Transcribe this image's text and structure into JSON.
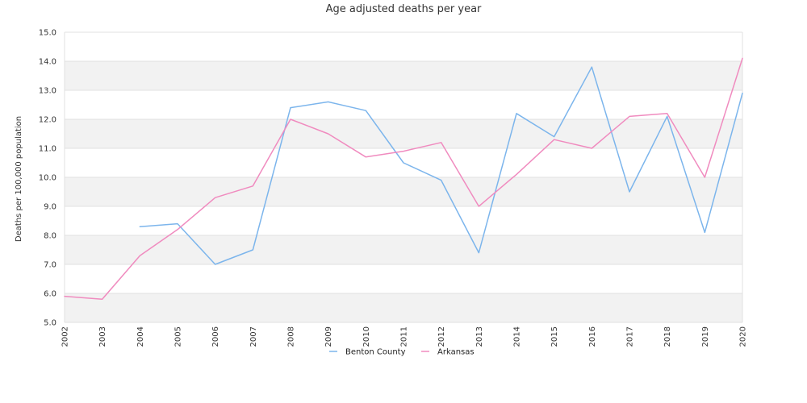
{
  "chart_data": {
    "type": "line",
    "title": "Age adjusted deaths per year",
    "xlabel": "",
    "ylabel": "Deaths per 100,000 population",
    "categories": [
      "2002",
      "2003",
      "2004",
      "2005",
      "2006",
      "2007",
      "2008",
      "2009",
      "2010",
      "2011",
      "2012",
      "2013",
      "2014",
      "2015",
      "2016",
      "2017",
      "2018",
      "2019",
      "2020"
    ],
    "ylim": [
      5.0,
      15.0
    ],
    "yticks": [
      "5.0",
      "6.0",
      "7.0",
      "8.0",
      "9.0",
      "10.0",
      "11.0",
      "12.0",
      "13.0",
      "14.0",
      "15.0"
    ],
    "grid": "alternating horizontal bands",
    "legend_placement": "bottom-center",
    "series": [
      {
        "name": "Benton County",
        "color": "#7cb5ec",
        "values": [
          null,
          null,
          8.3,
          8.4,
          7.0,
          7.5,
          12.4,
          12.6,
          12.3,
          10.5,
          9.9,
          7.4,
          12.2,
          11.4,
          13.8,
          9.5,
          12.1,
          8.1,
          12.9
        ]
      },
      {
        "name": "Arkansas",
        "color": "#f08bbf",
        "values": [
          5.9,
          5.8,
          7.3,
          8.2,
          9.3,
          9.7,
          12.0,
          11.5,
          10.7,
          10.9,
          11.2,
          9.0,
          10.1,
          11.3,
          11.0,
          12.1,
          12.2,
          10.0,
          14.1
        ]
      }
    ]
  }
}
